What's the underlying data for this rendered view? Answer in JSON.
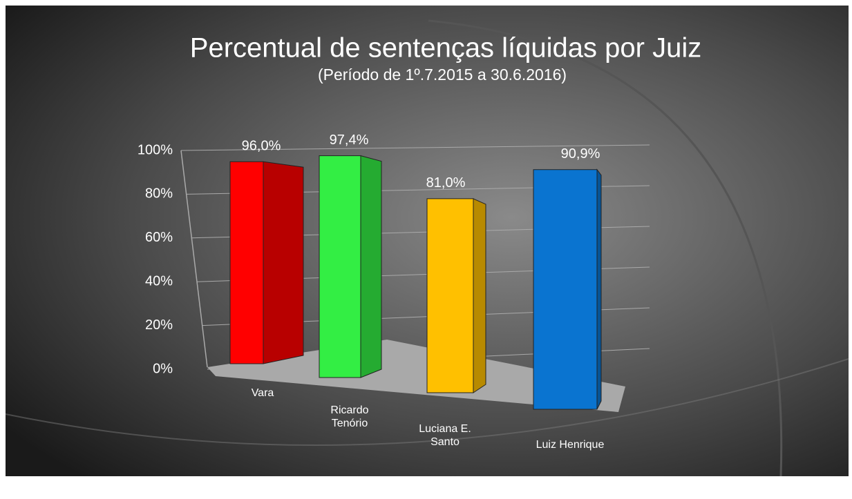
{
  "chart_data": {
    "type": "bar3d",
    "title": "Percentual de sentenças líquidas por Juiz",
    "subtitle": "(Período de 1º.7.2015  a  30.6.2016)",
    "categories": [
      "Vara",
      "Ricardo Tenório",
      "Luciana E. Santo",
      "Luiz Henrique"
    ],
    "series": [
      {
        "colors": [
          "#ff0000",
          "#33ee44",
          "#ffc000",
          "#0a74d0"
        ],
        "values": [
          96.0,
          97.4,
          81.0,
          90.9
        ],
        "value_labels": [
          "96,0%",
          "97,4%",
          "81,0%",
          "90,9%"
        ]
      }
    ],
    "ylim": [
      0,
      100
    ],
    "yticks": [
      {
        "value": 0,
        "label": "0%"
      },
      {
        "value": 20,
        "label": "20%"
      },
      {
        "value": 40,
        "label": "40%"
      },
      {
        "value": 60,
        "label": "60%"
      },
      {
        "value": 80,
        "label": "80%"
      },
      {
        "value": 100,
        "label": "100%"
      }
    ],
    "grid": true
  }
}
